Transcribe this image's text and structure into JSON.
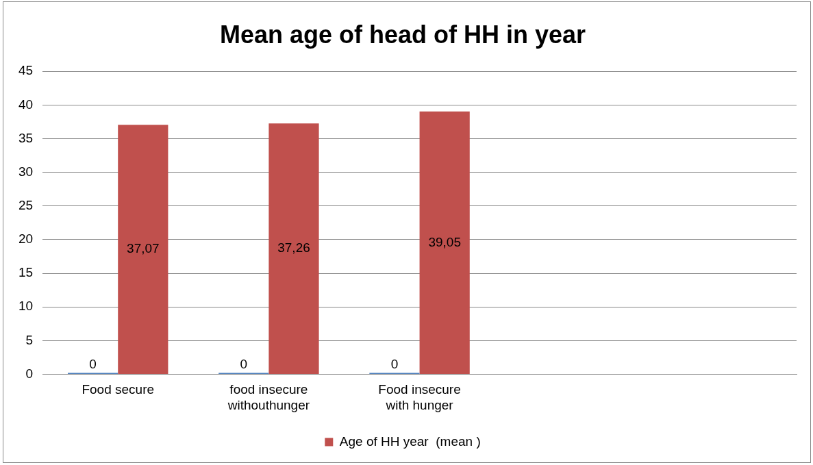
{
  "chart_data": {
    "type": "bar",
    "title": "Mean age of head of HH in year",
    "categories": [
      "Food secure",
      "food insecure withouthunger",
      "Food insecure with hunger",
      null,
      null
    ],
    "series": [
      {
        "color": "#4f81bd",
        "values": [
          0,
          0,
          0,
          null,
          null
        ],
        "value_labels": [
          "0",
          "0",
          "0",
          null,
          null
        ]
      },
      {
        "name": "Age of HH year  (mean )",
        "color": "#c0504d",
        "values": [
          37.07,
          37.26,
          39.05,
          null,
          null
        ],
        "value_labels": [
          "37,07",
          "37,26",
          "39,05",
          null,
          null
        ]
      }
    ],
    "ylim": [
      0,
      45
    ],
    "yticks": [
      0,
      5,
      10,
      15,
      20,
      25,
      30,
      35,
      40,
      45
    ],
    "grid": "y",
    "legend": "bottom"
  }
}
